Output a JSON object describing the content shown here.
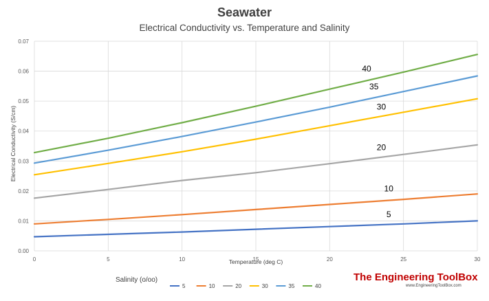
{
  "chart_data": {
    "type": "line",
    "title": "Seawater",
    "subtitle": "Electrical Conductivity  vs.  Temperature and Salinity",
    "xlabel": "Temperature  (deg C)",
    "ylabel": "Electrical  Conductivity  (S/cm)",
    "xlim": [
      0,
      30
    ],
    "ylim": [
      0,
      0.07
    ],
    "x_ticks": [
      0,
      5,
      10,
      15,
      20,
      25,
      30
    ],
    "x_tick_labels": [
      "0",
      "5",
      "10",
      "15",
      "20",
      "25",
      "30"
    ],
    "y_ticks": [
      0,
      0.01,
      0.02,
      0.03,
      0.04,
      0.05,
      0.06,
      0.07
    ],
    "y_tick_labels": [
      "0.00",
      "0.01",
      "0.02",
      "0.03",
      "0.04",
      "0.05",
      "0.06",
      "0.07"
    ],
    "grid": true,
    "legend_title": "Salinity (o/oo)",
    "legend_position": "bottom",
    "x": [
      0,
      5,
      10,
      15,
      20,
      25,
      30
    ],
    "series": [
      {
        "name": "5",
        "color": "#4472C4",
        "values": [
          0.0047,
          0.0055,
          0.0063,
          0.0072,
          0.0081,
          0.009,
          0.01
        ],
        "label_x": 24,
        "label_y": 0.0112
      },
      {
        "name": "10",
        "color": "#ED7D31",
        "values": [
          0.009,
          0.0105,
          0.0121,
          0.0138,
          0.0155,
          0.0172,
          0.019
        ],
        "label_x": 24,
        "label_y": 0.0198
      },
      {
        "name": "20",
        "color": "#A5A5A5",
        "values": [
          0.0176,
          0.0205,
          0.0235,
          0.0261,
          0.0291,
          0.0322,
          0.0354
        ],
        "label_x": 23.5,
        "label_y": 0.0336
      },
      {
        "name": "30",
        "color": "#FFC000",
        "values": [
          0.0254,
          0.0292,
          0.0331,
          0.0373,
          0.0418,
          0.0463,
          0.0508
        ],
        "label_x": 23.5,
        "label_y": 0.0472
      },
      {
        "name": "35",
        "color": "#5B9BD5",
        "values": [
          0.0293,
          0.0336,
          0.0382,
          0.043,
          0.048,
          0.0532,
          0.0584
        ],
        "label_x": 23,
        "label_y": 0.0539
      },
      {
        "name": "40",
        "color": "#70AD47",
        "values": [
          0.0328,
          0.0376,
          0.0428,
          0.0483,
          0.054,
          0.0597,
          0.0656
        ],
        "label_x": 22.5,
        "label_y": 0.0599
      }
    ]
  },
  "branding": {
    "name": "The Engineering ToolBox",
    "url": "www.EngineeringToolBox.com"
  }
}
